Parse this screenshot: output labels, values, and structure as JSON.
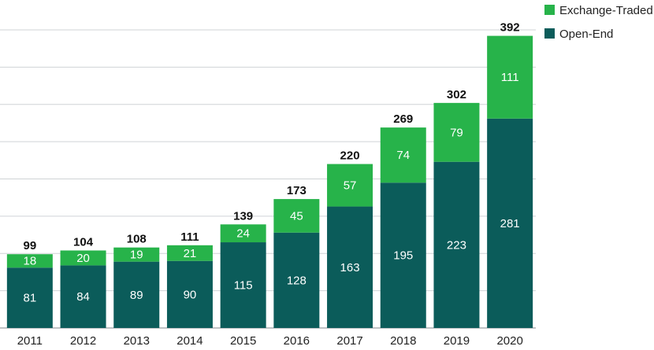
{
  "chart_data": {
    "type": "bar",
    "stacked": true,
    "title": "",
    "xlabel": "",
    "ylabel": "",
    "ylim": [
      0,
      400
    ],
    "grid": true,
    "legend_position": "top-right",
    "categories": [
      "2011",
      "2012",
      "2013",
      "2014",
      "2015",
      "2016",
      "2017",
      "2018",
      "2019",
      "2020"
    ],
    "series": [
      {
        "name": "Open-End",
        "color": "#0b5c5a",
        "values": [
          81,
          84,
          89,
          90,
          115,
          128,
          163,
          195,
          223,
          281
        ]
      },
      {
        "name": "Exchange-Traded",
        "color": "#27b34a",
        "values": [
          18,
          20,
          19,
          21,
          24,
          45,
          57,
          74,
          79,
          111
        ]
      }
    ],
    "totals": [
      99,
      104,
      108,
      111,
      139,
      173,
      220,
      269,
      302,
      392
    ],
    "legend": [
      "Exchange-Traded",
      "Open-End"
    ]
  }
}
